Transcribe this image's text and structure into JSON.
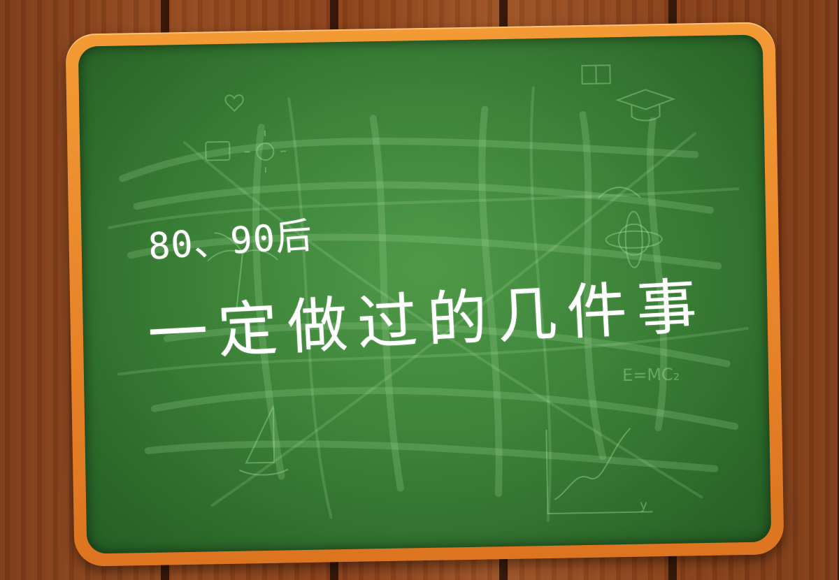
{
  "headline": {
    "line1": "80、90后",
    "line2": "一定做过的几件事"
  },
  "chalk_doodles": {
    "formula": "E=MC₂",
    "axis_label": "y"
  },
  "colors": {
    "board_green": "#3c8238",
    "frame_orange": "#ee8a2c",
    "wood_brown": "#8a4019",
    "chalk_white": "#ffffff"
  }
}
